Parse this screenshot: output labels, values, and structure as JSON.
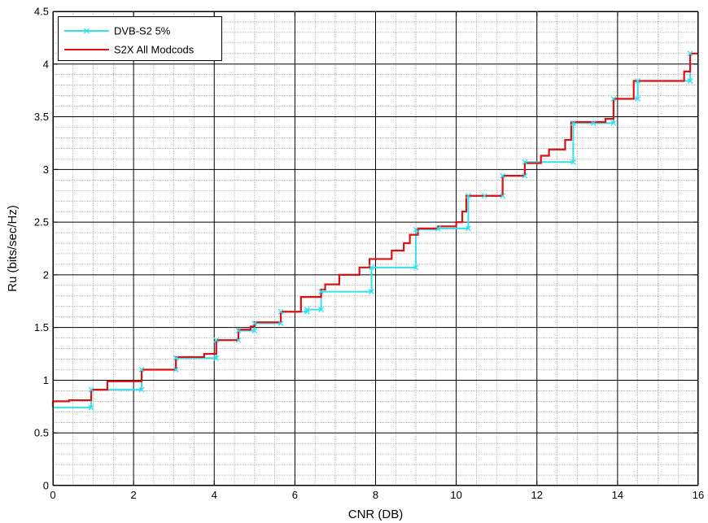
{
  "chart_data": {
    "type": "line",
    "title": "",
    "xlabel": "CNR (DB)",
    "ylabel": "Ru (bits/sec/Hz)",
    "xlim": [
      0,
      16
    ],
    "ylim": [
      0,
      4.5
    ],
    "x_ticks": [
      0,
      2,
      4,
      6,
      8,
      10,
      12,
      14,
      16
    ],
    "y_ticks": [
      0,
      0.5,
      1,
      1.5,
      2,
      2.5,
      3,
      3.5,
      4,
      4.5
    ],
    "x_tick_labels": [
      "0",
      "2",
      "4",
      "6",
      "8",
      "10",
      "12",
      "14",
      "16"
    ],
    "y_tick_labels": [
      "0",
      "0.5",
      "1",
      "1.5",
      "2",
      "2.5",
      "3",
      "3.5",
      "4",
      "4.5"
    ],
    "grid": "major-and-minor",
    "legend_position": "top-left",
    "colors": {
      "dvbs2": "#33e0ee",
      "s2x": "#dd1111",
      "major_grid": "#000000",
      "minor_grid": "#8a8a8a"
    },
    "series": [
      {
        "name": "DVB-S2 5%",
        "style": "step",
        "marker": "x",
        "points": [
          [
            0.0,
            0.74
          ],
          [
            0.95,
            0.74
          ],
          [
            0.95,
            0.91
          ],
          [
            2.2,
            0.91
          ],
          [
            2.2,
            1.1
          ],
          [
            3.05,
            1.1
          ],
          [
            3.05,
            1.21
          ],
          [
            4.05,
            1.21
          ],
          [
            4.05,
            1.38
          ],
          [
            4.6,
            1.38
          ],
          [
            4.6,
            1.47
          ],
          [
            5.0,
            1.47
          ],
          [
            5.0,
            1.54
          ],
          [
            5.65,
            1.54
          ],
          [
            5.65,
            1.65
          ],
          [
            6.3,
            1.65
          ],
          [
            6.3,
            1.67
          ],
          [
            6.65,
            1.67
          ],
          [
            6.65,
            1.84
          ],
          [
            7.9,
            1.84
          ],
          [
            7.9,
            2.07
          ],
          [
            9.0,
            2.07
          ],
          [
            9.0,
            2.43
          ],
          [
            9.55,
            2.43
          ],
          [
            9.55,
            2.44
          ],
          [
            10.3,
            2.44
          ],
          [
            10.3,
            2.75
          ],
          [
            11.15,
            2.75
          ],
          [
            11.15,
            2.94
          ],
          [
            11.7,
            2.94
          ],
          [
            11.7,
            3.07
          ],
          [
            12.9,
            3.07
          ],
          [
            12.9,
            3.44
          ],
          [
            13.4,
            3.44
          ],
          [
            13.9,
            3.44
          ],
          [
            13.9,
            3.67
          ],
          [
            14.5,
            3.67
          ],
          [
            14.5,
            3.84
          ],
          [
            15.8,
            3.84
          ],
          [
            15.8,
            4.1
          ]
        ]
      },
      {
        "name": "S2X All Modcods",
        "style": "step",
        "marker": "none",
        "points": [
          [
            0.0,
            0.74
          ],
          [
            0.0,
            0.8
          ],
          [
            0.4,
            0.8
          ],
          [
            0.4,
            0.81
          ],
          [
            0.95,
            0.81
          ],
          [
            0.95,
            0.91
          ],
          [
            1.35,
            0.91
          ],
          [
            1.35,
            0.99
          ],
          [
            2.2,
            0.99
          ],
          [
            2.2,
            1.1
          ],
          [
            3.05,
            1.1
          ],
          [
            3.05,
            1.22
          ],
          [
            3.75,
            1.22
          ],
          [
            3.75,
            1.25
          ],
          [
            4.05,
            1.25
          ],
          [
            4.05,
            1.38
          ],
          [
            4.6,
            1.38
          ],
          [
            4.6,
            1.48
          ],
          [
            4.9,
            1.48
          ],
          [
            4.9,
            1.51
          ],
          [
            5.0,
            1.51
          ],
          [
            5.0,
            1.55
          ],
          [
            5.65,
            1.55
          ],
          [
            5.65,
            1.65
          ],
          [
            6.15,
            1.65
          ],
          [
            6.15,
            1.79
          ],
          [
            6.65,
            1.79
          ],
          [
            6.65,
            1.86
          ],
          [
            6.75,
            1.86
          ],
          [
            6.75,
            1.91
          ],
          [
            7.1,
            1.91
          ],
          [
            7.1,
            2.0
          ],
          [
            7.6,
            2.0
          ],
          [
            7.6,
            2.07
          ],
          [
            7.85,
            2.07
          ],
          [
            7.85,
            2.15
          ],
          [
            8.4,
            2.15
          ],
          [
            8.4,
            2.23
          ],
          [
            8.7,
            2.23
          ],
          [
            8.7,
            2.3
          ],
          [
            8.85,
            2.3
          ],
          [
            8.85,
            2.38
          ],
          [
            9.05,
            2.38
          ],
          [
            9.05,
            2.44
          ],
          [
            9.55,
            2.44
          ],
          [
            9.55,
            2.46
          ],
          [
            10.0,
            2.46
          ],
          [
            10.0,
            2.5
          ],
          [
            10.15,
            2.5
          ],
          [
            10.15,
            2.6
          ],
          [
            10.25,
            2.6
          ],
          [
            10.25,
            2.75
          ],
          [
            11.15,
            2.75
          ],
          [
            11.15,
            2.94
          ],
          [
            11.7,
            2.94
          ],
          [
            11.7,
            3.06
          ],
          [
            12.1,
            3.06
          ],
          [
            12.1,
            3.13
          ],
          [
            12.3,
            3.13
          ],
          [
            12.3,
            3.19
          ],
          [
            12.7,
            3.19
          ],
          [
            12.7,
            3.28
          ],
          [
            12.85,
            3.28
          ],
          [
            12.85,
            3.45
          ],
          [
            13.7,
            3.45
          ],
          [
            13.7,
            3.48
          ],
          [
            13.9,
            3.48
          ],
          [
            13.9,
            3.67
          ],
          [
            14.4,
            3.67
          ],
          [
            14.4,
            3.84
          ],
          [
            15.65,
            3.84
          ],
          [
            15.65,
            3.93
          ],
          [
            15.8,
            3.93
          ],
          [
            15.8,
            4.1
          ],
          [
            16.0,
            4.1
          ]
        ]
      }
    ],
    "dvbs2_marker_points": [
      [
        0.95,
        0.74
      ],
      [
        0.95,
        0.91
      ],
      [
        2.2,
        0.91
      ],
      [
        2.2,
        1.1
      ],
      [
        3.05,
        1.1
      ],
      [
        3.05,
        1.21
      ],
      [
        4.05,
        1.21
      ],
      [
        4.05,
        1.38
      ],
      [
        4.6,
        1.38
      ],
      [
        4.6,
        1.47
      ],
      [
        5.0,
        1.47
      ],
      [
        5.0,
        1.54
      ],
      [
        5.65,
        1.54
      ],
      [
        5.65,
        1.65
      ],
      [
        6.3,
        1.65
      ],
      [
        6.3,
        1.67
      ],
      [
        6.65,
        1.67
      ],
      [
        6.65,
        1.84
      ],
      [
        7.9,
        1.84
      ],
      [
        7.9,
        2.07
      ],
      [
        9.0,
        2.07
      ],
      [
        9.0,
        2.43
      ],
      [
        9.55,
        2.44
      ],
      [
        10.3,
        2.44
      ],
      [
        10.3,
        2.75
      ],
      [
        10.7,
        2.75
      ],
      [
        11.15,
        2.75
      ],
      [
        11.15,
        2.94
      ],
      [
        11.7,
        2.94
      ],
      [
        11.7,
        3.07
      ],
      [
        12.9,
        3.07
      ],
      [
        12.9,
        3.44
      ],
      [
        13.4,
        3.44
      ],
      [
        13.9,
        3.44
      ],
      [
        13.9,
        3.67
      ],
      [
        14.5,
        3.67
      ],
      [
        14.5,
        3.84
      ],
      [
        15.8,
        3.84
      ],
      [
        15.8,
        4.1
      ]
    ]
  }
}
